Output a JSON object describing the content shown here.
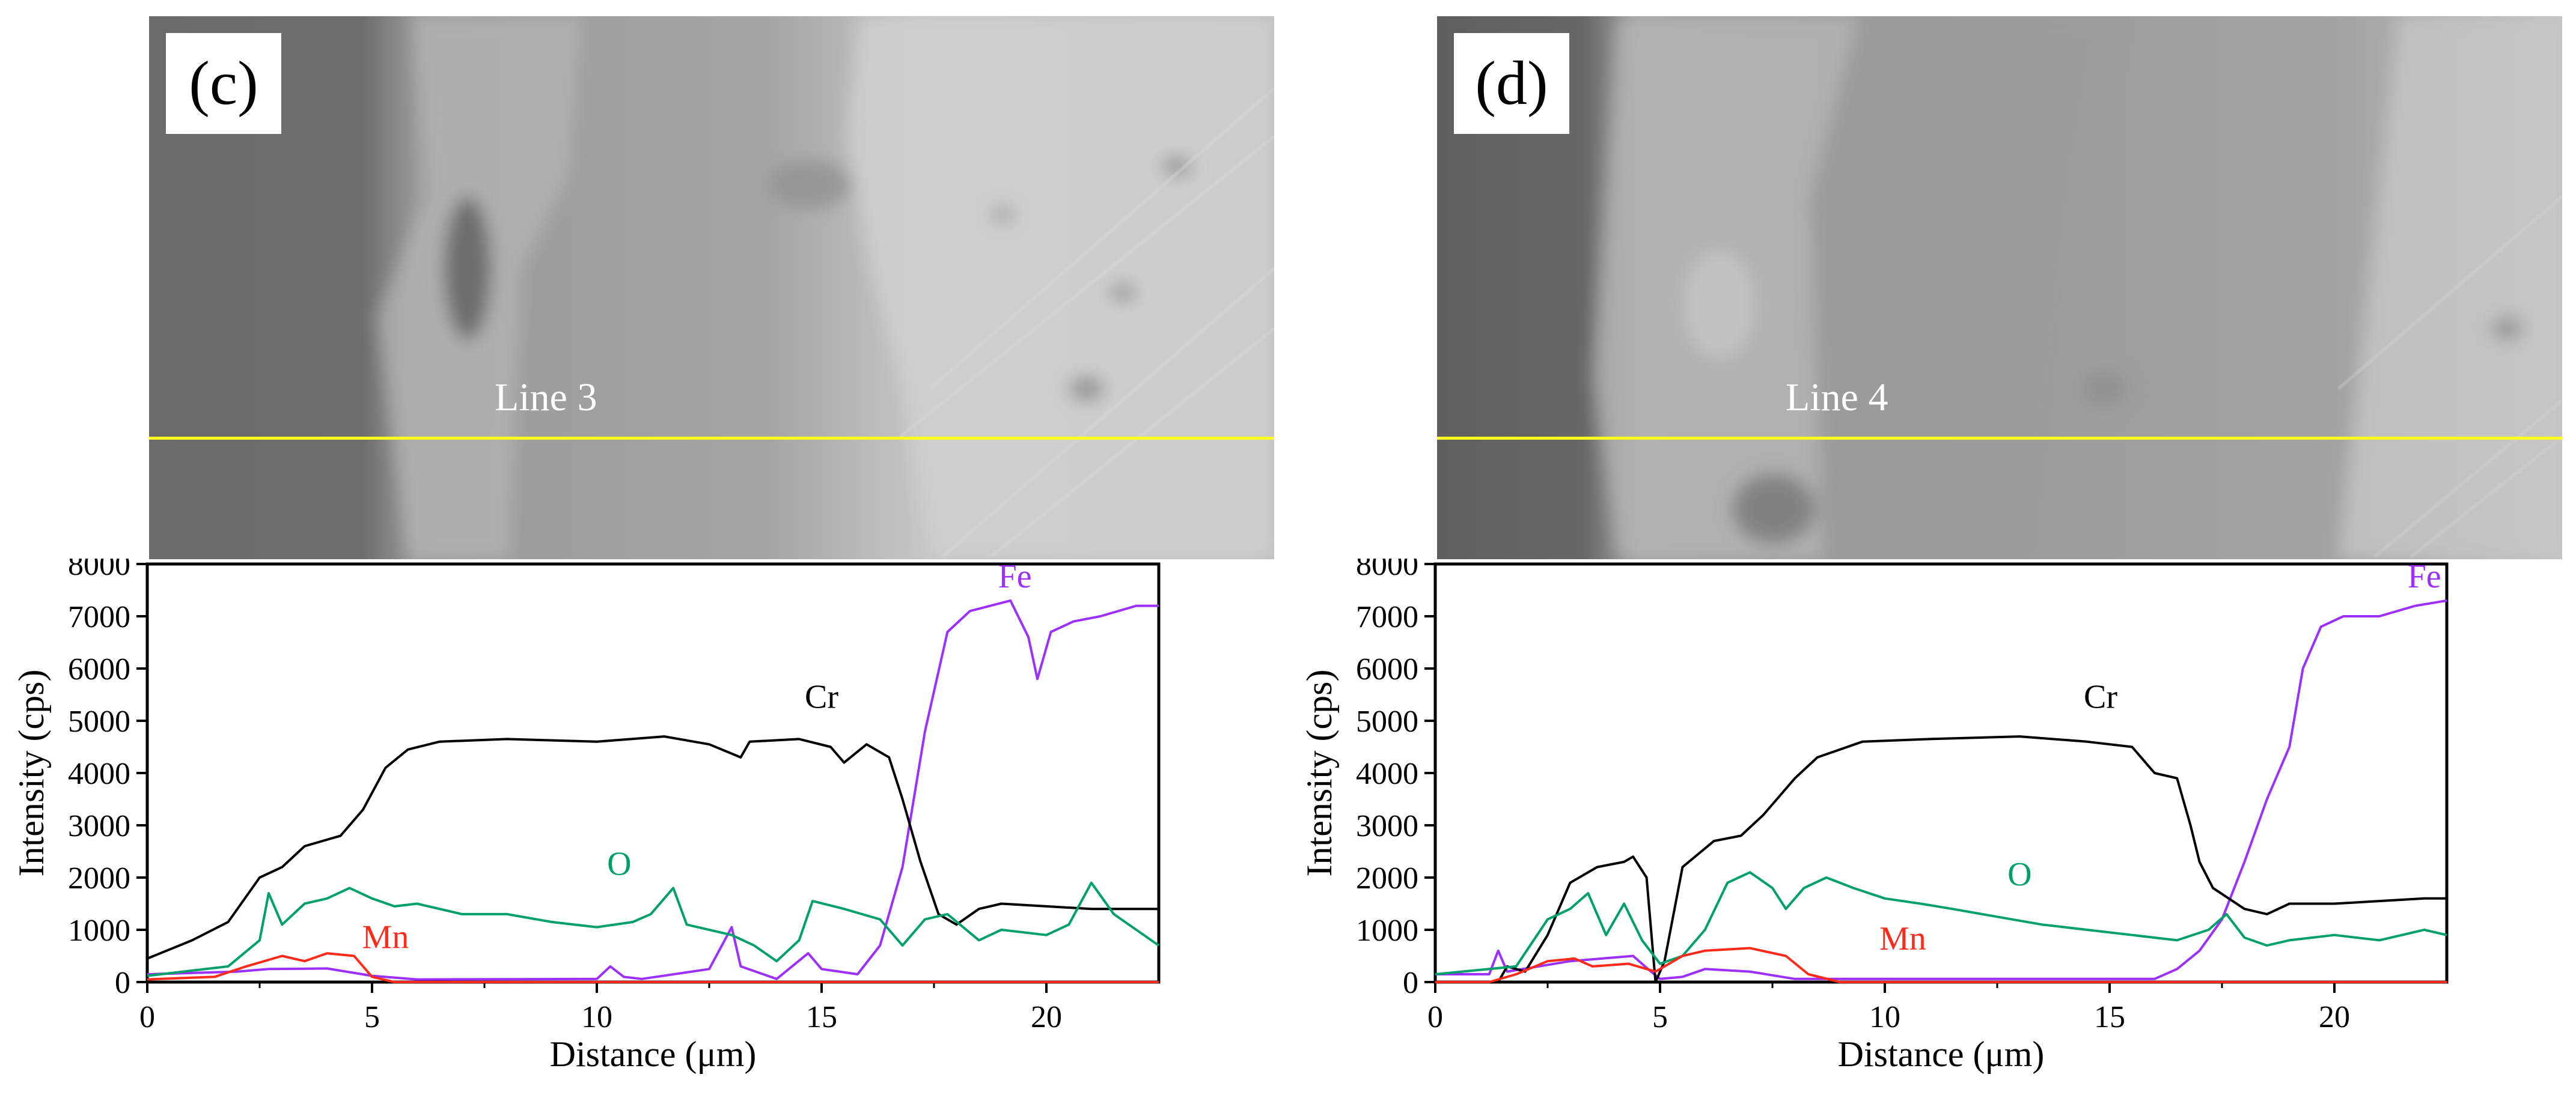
{
  "figure": {
    "panels": [
      {
        "label": "(c)",
        "line_label": "Line 3"
      },
      {
        "label": "(d)",
        "line_label": "Line 4"
      }
    ]
  },
  "colors": {
    "Fe": "#9b30ff",
    "Cr": "#000000",
    "O": "#00a06a",
    "Mn": "#ff2a1a",
    "scan_line": "#ffff1e"
  },
  "chart_data": [
    {
      "type": "line",
      "title": "(c)",
      "xlabel": "Distance (μm)",
      "ylabel": "Intensity (cps)",
      "xlim": [
        0,
        22.5
      ],
      "ylim": [
        0,
        8000
      ],
      "xticks": [
        0,
        5,
        10,
        15,
        20
      ],
      "yticks": [
        0,
        1000,
        2000,
        3000,
        4000,
        5000,
        6000,
        7000,
        8000
      ],
      "series": [
        {
          "name": "Fe",
          "label_at": [
            19.3,
            7550
          ],
          "points": [
            [
              0,
              150
            ],
            [
              2,
              200
            ],
            [
              2.7,
              250
            ],
            [
              4,
              260
            ],
            [
              5,
              120
            ],
            [
              6,
              50
            ],
            [
              10,
              60
            ],
            [
              10.3,
              300
            ],
            [
              10.6,
              100
            ],
            [
              11,
              60
            ],
            [
              12.5,
              250
            ],
            [
              13,
              1050
            ],
            [
              13.2,
              300
            ],
            [
              14,
              60
            ],
            [
              14.7,
              550
            ],
            [
              15,
              250
            ],
            [
              15.8,
              150
            ],
            [
              16.3,
              700
            ],
            [
              16.8,
              2200
            ],
            [
              17.3,
              4800
            ],
            [
              17.8,
              6700
            ],
            [
              18.3,
              7100
            ],
            [
              19.2,
              7300
            ],
            [
              19.6,
              6600
            ],
            [
              19.8,
              5800
            ],
            [
              20.1,
              6700
            ],
            [
              20.6,
              6900
            ],
            [
              21.2,
              7000
            ],
            [
              22,
              7200
            ],
            [
              22.5,
              7200
            ]
          ]
        },
        {
          "name": "Cr",
          "label_at": [
            15,
            5250
          ],
          "points": [
            [
              0,
              450
            ],
            [
              1,
              800
            ],
            [
              1.8,
              1150
            ],
            [
              2.5,
              2000
            ],
            [
              3,
              2200
            ],
            [
              3.5,
              2600
            ],
            [
              4.3,
              2800
            ],
            [
              4.8,
              3300
            ],
            [
              5.3,
              4100
            ],
            [
              5.8,
              4450
            ],
            [
              6.5,
              4600
            ],
            [
              8,
              4650
            ],
            [
              10,
              4600
            ],
            [
              11.5,
              4700
            ],
            [
              12.5,
              4550
            ],
            [
              13.2,
              4300
            ],
            [
              13.4,
              4600
            ],
            [
              14.5,
              4650
            ],
            [
              15.2,
              4500
            ],
            [
              15.5,
              4200
            ],
            [
              16,
              4550
            ],
            [
              16.5,
              4300
            ],
            [
              16.8,
              3500
            ],
            [
              17.2,
              2300
            ],
            [
              17.6,
              1300
            ],
            [
              18,
              1100
            ],
            [
              18.5,
              1400
            ],
            [
              19,
              1500
            ],
            [
              20,
              1450
            ],
            [
              21,
              1400
            ],
            [
              22.5,
              1400
            ]
          ]
        },
        {
          "name": "O",
          "label_at": [
            10.5,
            2050
          ],
          "points": [
            [
              0,
              120
            ],
            [
              1.8,
              300
            ],
            [
              2.5,
              800
            ],
            [
              2.7,
              1700
            ],
            [
              3,
              1100
            ],
            [
              3.5,
              1500
            ],
            [
              4,
              1600
            ],
            [
              4.5,
              1800
            ],
            [
              5,
              1600
            ],
            [
              5.5,
              1450
            ],
            [
              6,
              1500
            ],
            [
              7,
              1300
            ],
            [
              8,
              1300
            ],
            [
              9,
              1150
            ],
            [
              10,
              1050
            ],
            [
              10.8,
              1150
            ],
            [
              11.2,
              1300
            ],
            [
              11.7,
              1800
            ],
            [
              12,
              1100
            ],
            [
              13,
              900
            ],
            [
              13.5,
              700
            ],
            [
              14,
              400
            ],
            [
              14.5,
              800
            ],
            [
              14.8,
              1550
            ],
            [
              15.5,
              1400
            ],
            [
              16.3,
              1200
            ],
            [
              16.8,
              700
            ],
            [
              17.3,
              1200
            ],
            [
              17.8,
              1300
            ],
            [
              18.5,
              800
            ],
            [
              19,
              1000
            ],
            [
              20,
              900
            ],
            [
              20.5,
              1100
            ],
            [
              21,
              1900
            ],
            [
              21.5,
              1300
            ],
            [
              22,
              1000
            ],
            [
              22.5,
              700
            ]
          ]
        },
        {
          "name": "Mn",
          "label_at": [
            5.3,
            650
          ],
          "points": [
            [
              0,
              50
            ],
            [
              1.5,
              100
            ],
            [
              2.2,
              300
            ],
            [
              3,
              500
            ],
            [
              3.5,
              400
            ],
            [
              4,
              550
            ],
            [
              4.6,
              500
            ],
            [
              5,
              100
            ],
            [
              5.5,
              0
            ],
            [
              22.5,
              0
            ]
          ]
        }
      ]
    },
    {
      "type": "line",
      "title": "(d)",
      "xlabel": "Distance (μm)",
      "ylabel": "Intensity (cps)",
      "xlim": [
        0,
        22.5
      ],
      "ylim": [
        0,
        8000
      ],
      "xticks": [
        0,
        5,
        10,
        15,
        20
      ],
      "yticks": [
        0,
        1000,
        2000,
        3000,
        4000,
        5000,
        6000,
        7000,
        8000
      ],
      "series": [
        {
          "name": "Fe",
          "label_at": [
            22,
            7550
          ],
          "points": [
            [
              0,
              150
            ],
            [
              1.2,
              150
            ],
            [
              1.4,
              600
            ],
            [
              1.6,
              200
            ],
            [
              3,
              400
            ],
            [
              4.4,
              500
            ],
            [
              4.8,
              200
            ],
            [
              5,
              60
            ],
            [
              5.5,
              100
            ],
            [
              6,
              250
            ],
            [
              7,
              200
            ],
            [
              8,
              60
            ],
            [
              16,
              60
            ],
            [
              16.5,
              250
            ],
            [
              17,
              600
            ],
            [
              17.5,
              1200
            ],
            [
              18,
              2300
            ],
            [
              18.5,
              3500
            ],
            [
              19,
              4500
            ],
            [
              19.3,
              6000
            ],
            [
              19.7,
              6800
            ],
            [
              20.2,
              7000
            ],
            [
              21,
              7000
            ],
            [
              21.8,
              7200
            ],
            [
              22.5,
              7300
            ]
          ]
        },
        {
          "name": "Cr",
          "label_at": [
            14.8,
            5250
          ],
          "points": [
            [
              0,
              0
            ],
            [
              1.4,
              0
            ],
            [
              1.6,
              300
            ],
            [
              2,
              200
            ],
            [
              2.5,
              900
            ],
            [
              3,
              1900
            ],
            [
              3.6,
              2200
            ],
            [
              4.2,
              2300
            ],
            [
              4.4,
              2400
            ],
            [
              4.7,
              2000
            ],
            [
              4.9,
              0
            ],
            [
              5.1,
              400
            ],
            [
              5.5,
              2200
            ],
            [
              6.2,
              2700
            ],
            [
              6.8,
              2800
            ],
            [
              7.3,
              3200
            ],
            [
              8,
              3900
            ],
            [
              8.5,
              4300
            ],
            [
              9.5,
              4600
            ],
            [
              11,
              4650
            ],
            [
              13,
              4700
            ],
            [
              14.5,
              4600
            ],
            [
              15.5,
              4500
            ],
            [
              16,
              4000
            ],
            [
              16.5,
              3900
            ],
            [
              16.8,
              3000
            ],
            [
              17,
              2300
            ],
            [
              17.3,
              1800
            ],
            [
              18,
              1400
            ],
            [
              18.5,
              1300
            ],
            [
              19,
              1500
            ],
            [
              20,
              1500
            ],
            [
              21,
              1550
            ],
            [
              22,
              1600
            ],
            [
              22.5,
              1600
            ]
          ]
        },
        {
          "name": "O",
          "label_at": [
            13,
            1850
          ],
          "points": [
            [
              0,
              150
            ],
            [
              1.8,
              300
            ],
            [
              2.5,
              1200
            ],
            [
              3,
              1400
            ],
            [
              3.4,
              1700
            ],
            [
              3.8,
              900
            ],
            [
              4.2,
              1500
            ],
            [
              4.6,
              800
            ],
            [
              5,
              350
            ],
            [
              5.5,
              500
            ],
            [
              6,
              1000
            ],
            [
              6.5,
              1900
            ],
            [
              7,
              2100
            ],
            [
              7.5,
              1800
            ],
            [
              7.8,
              1400
            ],
            [
              8.2,
              1800
            ],
            [
              8.7,
              2000
            ],
            [
              9.3,
              1800
            ],
            [
              10,
              1600
            ],
            [
              10.8,
              1500
            ],
            [
              11.5,
              1400
            ],
            [
              12.5,
              1250
            ],
            [
              13.5,
              1100
            ],
            [
              14.5,
              1000
            ],
            [
              15.5,
              900
            ],
            [
              16.5,
              800
            ],
            [
              17.2,
              1000
            ],
            [
              17.6,
              1300
            ],
            [
              18,
              850
            ],
            [
              18.5,
              700
            ],
            [
              19,
              800
            ],
            [
              20,
              900
            ],
            [
              21,
              800
            ],
            [
              22,
              1000
            ],
            [
              22.5,
              900
            ]
          ]
        },
        {
          "name": "Mn",
          "label_at": [
            10.4,
            620
          ],
          "points": [
            [
              0,
              0
            ],
            [
              1.2,
              0
            ],
            [
              1.8,
              150
            ],
            [
              2.5,
              400
            ],
            [
              3.1,
              450
            ],
            [
              3.5,
              300
            ],
            [
              4.3,
              350
            ],
            [
              4.9,
              200
            ],
            [
              5.5,
              500
            ],
            [
              6,
              600
            ],
            [
              7,
              650
            ],
            [
              7.8,
              500
            ],
            [
              8.3,
              150
            ],
            [
              9,
              0
            ],
            [
              22.5,
              0
            ]
          ]
        }
      ]
    }
  ]
}
